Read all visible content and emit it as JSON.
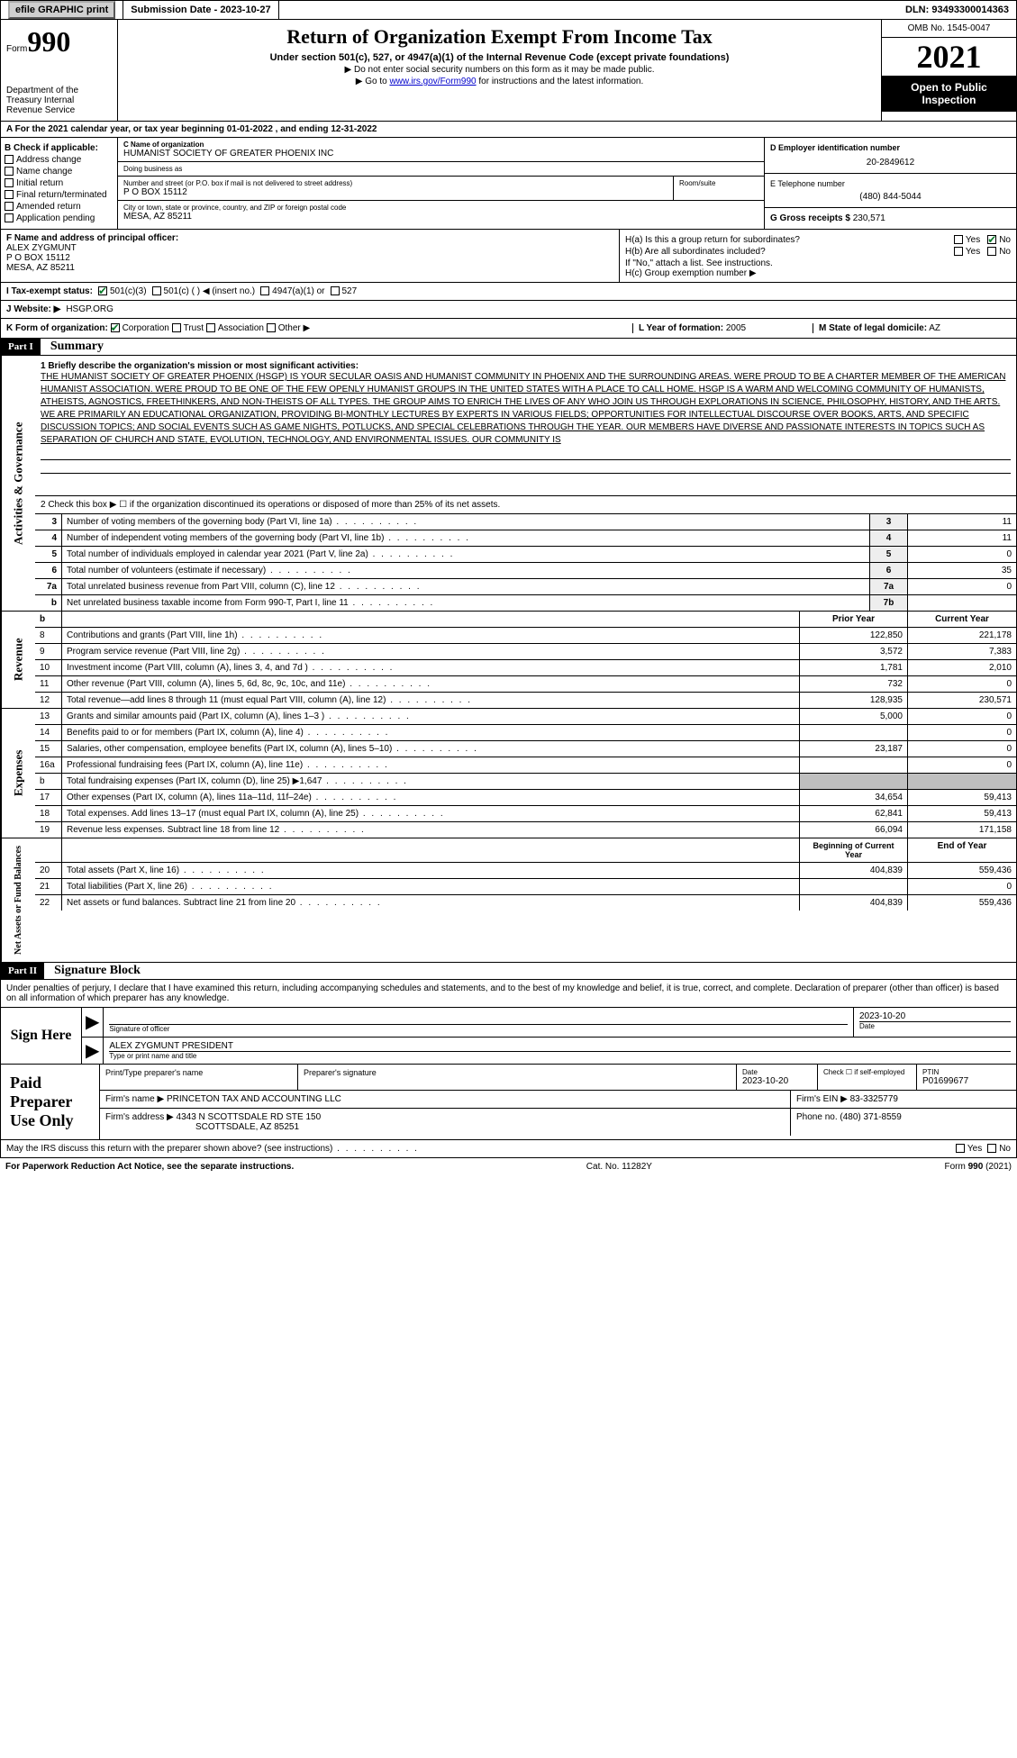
{
  "header": {
    "efile": "efile GRAPHIC print",
    "submission_label": "Submission Date - 2023-10-27",
    "dln": "DLN: 93493300014363"
  },
  "top": {
    "form_label": "Form",
    "form_no": "990",
    "dept": "Department of the Treasury Internal Revenue Service",
    "title": "Return of Organization Exempt From Income Tax",
    "subtitle": "Under section 501(c), 527, or 4947(a)(1) of the Internal Revenue Code (except private foundations)",
    "hint1": "▶ Do not enter social security numbers on this form as it may be made public.",
    "hint2_pre": "▶ Go to ",
    "hint2_link": "www.irs.gov/Form990",
    "hint2_post": " for instructions and the latest information.",
    "omb": "OMB No. 1545-0047",
    "year": "2021",
    "inspection": "Open to Public Inspection"
  },
  "rowA": "A For the 2021 calendar year, or tax year beginning 01-01-2022   , and ending 12-31-2022",
  "B": {
    "title": "B Check if applicable:",
    "items": [
      "Address change",
      "Name change",
      "Initial return",
      "Final return/terminated",
      "Amended return",
      "Application pending"
    ]
  },
  "C": {
    "name_label": "C Name of organization",
    "name": "HUMANIST SOCIETY OF GREATER PHOENIX INC",
    "dba_label": "Doing business as",
    "dba": "",
    "street_label": "Number and street (or P.O. box if mail is not delivered to street address)",
    "street": "P O BOX 15112",
    "room_label": "Room/suite",
    "city_label": "City or town, state or province, country, and ZIP or foreign postal code",
    "city": "MESA, AZ  85211"
  },
  "D": {
    "label": "D Employer identification number",
    "value": "20-2849612"
  },
  "E": {
    "label": "E Telephone number",
    "value": "(480) 844-5044"
  },
  "G": {
    "label": "G Gross receipts $",
    "value": "230,571"
  },
  "F": {
    "label": "F  Name and address of principal officer:",
    "name": "ALEX ZYGMUNT",
    "addr1": "P O BOX 15112",
    "addr2": "MESA, AZ  85211"
  },
  "H": {
    "a_label": "H(a)  Is this a group return for subordinates?",
    "b_label": "H(b)  Are all subordinates included?",
    "b_hint": "If \"No,\" attach a list. See instructions.",
    "c_label": "H(c)  Group exemption number ▶"
  },
  "I": {
    "label": "I   Tax-exempt status:",
    "opts": [
      "501(c)(3)",
      "501(c) (  ) ◀ (insert no.)",
      "4947(a)(1) or",
      "527"
    ]
  },
  "J": {
    "label": "J  Website: ▶",
    "value": "HSGP.ORG"
  },
  "K": {
    "label": "K Form of organization:",
    "opts": [
      "Corporation",
      "Trust",
      "Association",
      "Other ▶"
    ],
    "L_label": "L Year of formation:",
    "L_val": "2005",
    "M_label": "M State of legal domicile:",
    "M_val": "AZ"
  },
  "part1": {
    "header": "Part I",
    "title": "Summary"
  },
  "mission": {
    "label": "1  Briefly describe the organization's mission or most significant activities:",
    "text": "THE HUMANIST SOCIETY OF GREATER PHOENIX (HSGP) IS YOUR SECULAR OASIS AND HUMANIST COMMUNITY IN PHOENIX AND THE SURROUNDING AREAS. WERE PROUD TO BE A CHARTER MEMBER OF THE AMERICAN HUMANIST ASSOCIATION. WERE PROUD TO BE ONE OF THE FEW OPENLY HUMANIST GROUPS IN THE UNITED STATES WITH A PLACE TO CALL HOME. HSGP IS A WARM AND WELCOMING COMMUNITY OF HUMANISTS, ATHEISTS, AGNOSTICS, FREETHINKERS, AND NON-THEISTS OF ALL TYPES. THE GROUP AIMS TO ENRICH THE LIVES OF ANY WHO JOIN US THROUGH EXPLORATIONS IN SCIENCE, PHILOSOPHY, HISTORY, AND THE ARTS. WE ARE PRIMARILY AN EDUCATIONAL ORGANIZATION, PROVIDING BI-MONTHLY LECTURES BY EXPERTS IN VARIOUS FIELDS; OPPORTUNITIES FOR INTELLECTUAL DISCOURSE OVER BOOKS, ARTS, AND SPECIFIC DISCUSSION TOPICS; AND SOCIAL EVENTS SUCH AS GAME NIGHTS, POTLUCKS, AND SPECIAL CELEBRATIONS THROUGH THE YEAR. OUR MEMBERS HAVE DIVERSE AND PASSIONATE INTERESTS IN TOPICS SUCH AS SEPARATION OF CHURCH AND STATE, EVOLUTION, TECHNOLOGY, AND ENVIRONMENTAL ISSUES. OUR COMMUNITY IS"
  },
  "line2": "2   Check this box ▶ ☐  if the organization discontinued its operations or disposed of more than 25% of its net assets.",
  "gov_rows": [
    {
      "n": "3",
      "t": "Number of voting members of the governing body (Part VI, line 1a)",
      "ln": "3",
      "v": "11"
    },
    {
      "n": "4",
      "t": "Number of independent voting members of the governing body (Part VI, line 1b)",
      "ln": "4",
      "v": "11"
    },
    {
      "n": "5",
      "t": "Total number of individuals employed in calendar year 2021 (Part V, line 2a)",
      "ln": "5",
      "v": "0"
    },
    {
      "n": "6",
      "t": "Total number of volunteers (estimate if necessary)",
      "ln": "6",
      "v": "35"
    },
    {
      "n": "7a",
      "t": "Total unrelated business revenue from Part VIII, column (C), line 12",
      "ln": "7a",
      "v": "0"
    },
    {
      "n": "b",
      "t": "Net unrelated business taxable income from Form 990-T, Part I, line 11",
      "ln": "7b",
      "v": ""
    }
  ],
  "rev_header": {
    "prior": "Prior Year",
    "current": "Current Year"
  },
  "rev_rows": [
    {
      "n": "8",
      "t": "Contributions and grants (Part VIII, line 1h)",
      "p": "122,850",
      "c": "221,178"
    },
    {
      "n": "9",
      "t": "Program service revenue (Part VIII, line 2g)",
      "p": "3,572",
      "c": "7,383"
    },
    {
      "n": "10",
      "t": "Investment income (Part VIII, column (A), lines 3, 4, and 7d )",
      "p": "1,781",
      "c": "2,010"
    },
    {
      "n": "11",
      "t": "Other revenue (Part VIII, column (A), lines 5, 6d, 8c, 9c, 10c, and 11e)",
      "p": "732",
      "c": "0"
    },
    {
      "n": "12",
      "t": "Total revenue—add lines 8 through 11 (must equal Part VIII, column (A), line 12)",
      "p": "128,935",
      "c": "230,571"
    }
  ],
  "exp_rows": [
    {
      "n": "13",
      "t": "Grants and similar amounts paid (Part IX, column (A), lines 1–3 )",
      "p": "5,000",
      "c": "0"
    },
    {
      "n": "14",
      "t": "Benefits paid to or for members (Part IX, column (A), line 4)",
      "p": "",
      "c": "0"
    },
    {
      "n": "15",
      "t": "Salaries, other compensation, employee benefits (Part IX, column (A), lines 5–10)",
      "p": "23,187",
      "c": "0"
    },
    {
      "n": "16a",
      "t": "Professional fundraising fees (Part IX, column (A), line 11e)",
      "p": "",
      "c": "0"
    },
    {
      "n": "b",
      "t": "Total fundraising expenses (Part IX, column (D), line 25) ▶1,647",
      "p": "__shaded__",
      "c": "__shaded__"
    },
    {
      "n": "17",
      "t": "Other expenses (Part IX, column (A), lines 11a–11d, 11f–24e)",
      "p": "34,654",
      "c": "59,413"
    },
    {
      "n": "18",
      "t": "Total expenses. Add lines 13–17 (must equal Part IX, column (A), line 25)",
      "p": "62,841",
      "c": "59,413"
    },
    {
      "n": "19",
      "t": "Revenue less expenses. Subtract line 18 from line 12",
      "p": "66,094",
      "c": "171,158"
    }
  ],
  "na_header": {
    "prior": "Beginning of Current Year",
    "current": "End of Year"
  },
  "na_rows": [
    {
      "n": "20",
      "t": "Total assets (Part X, line 16)",
      "p": "404,839",
      "c": "559,436"
    },
    {
      "n": "21",
      "t": "Total liabilities (Part X, line 26)",
      "p": "",
      "c": "0"
    },
    {
      "n": "22",
      "t": "Net assets or fund balances. Subtract line 21 from line 20",
      "p": "404,839",
      "c": "559,436"
    }
  ],
  "vtabs": {
    "gov": "Activities & Governance",
    "rev": "Revenue",
    "exp": "Expenses",
    "na": "Net Assets or Fund Balances"
  },
  "part2": {
    "header": "Part II",
    "title": "Signature Block"
  },
  "sig": {
    "intro": "Under penalties of perjury, I declare that I have examined this return, including accompanying schedules and statements, and to the best of my knowledge and belief, it is true, correct, and complete. Declaration of preparer (other than officer) is based on all information of which preparer has any knowledge.",
    "sign_here": "Sign Here",
    "sig_officer": "Signature of officer",
    "date": "2023-10-20",
    "date_label": "Date",
    "name": "ALEX ZYGMUNT  PRESIDENT",
    "name_label": "Type or print name and title"
  },
  "paid": {
    "title": "Paid Preparer Use Only",
    "h1": "Print/Type preparer's name",
    "h2": "Preparer's signature",
    "h3_label": "Date",
    "h3": "2023-10-20",
    "h4_label": "Check ☐ if self-employed",
    "h5_label": "PTIN",
    "h5": "P01699677",
    "firm_name_label": "Firm's name    ▶",
    "firm_name": "PRINCETON TAX AND ACCOUNTING LLC",
    "firm_ein_label": "Firm's EIN ▶",
    "firm_ein": "83-3325779",
    "firm_addr_label": "Firm's address ▶",
    "firm_addr1": "4343 N SCOTTSDALE RD STE 150",
    "firm_addr2": "SCOTTSDALE, AZ  85251",
    "phone_label": "Phone no.",
    "phone": "(480) 371-8559"
  },
  "discuss": "May the IRS discuss this return with the preparer shown above? (see instructions)",
  "footer": {
    "left": "For Paperwork Reduction Act Notice, see the separate instructions.",
    "mid": "Cat. No. 11282Y",
    "right": "Form 990 (2021)"
  }
}
